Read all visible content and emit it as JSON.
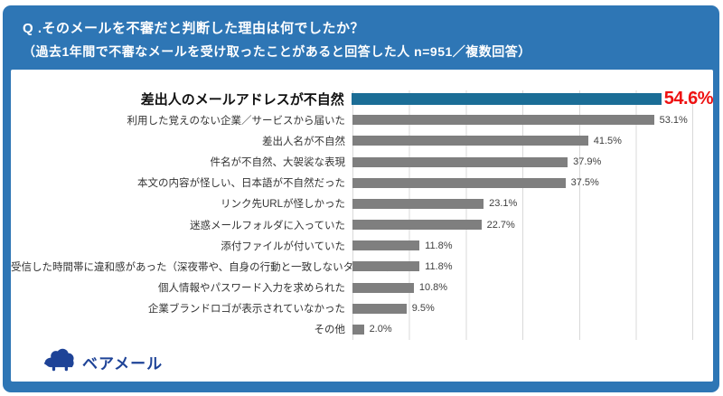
{
  "header": {
    "line1": "Q .そのメールを不審だと判断した理由は何でしたか？",
    "line2": "（過去1年間で不審なメールを受け取ったことがあると回答した人 n=951／複数回答）"
  },
  "logo": {
    "text": "ベアメール"
  },
  "colors": {
    "frame_blue": "#2e76b5",
    "highlight_bar": "#1b6d96",
    "bar_gray": "#7f7f7f",
    "highlight_value_red": "#ee1111",
    "gridline": "#d9d9d9",
    "logo_navy": "#1e4397"
  },
  "chart_data": {
    "type": "bar",
    "orientation": "horizontal",
    "title": "Q .そのメールを不審だと判断した理由は何でしたか？",
    "subtitle": "（過去1年間で不審なメールを受け取ったことがあると回答した人 n=951／複数回答）",
    "categories": [
      "差出人のメールアドレスが不自然",
      "利用した覚えのない企業／サービスから届いた",
      "差出人名が不自然",
      "件名が不自然、大袈裟な表現",
      "本文の内容が怪しい、日本語が不自然だった",
      "リンク先URLが怪しかった",
      "迷惑メールフォルダに入っていた",
      "添付ファイルが付いていた",
      "受信した時間帯に違和感があった（深夜帯や、自身の行動と一致しないタイミングなど）",
      "個人情報やパスワード入力を求められた",
      "企業ブランドロゴが表示されていなかった",
      "その他"
    ],
    "values": [
      54.6,
      53.1,
      41.5,
      37.9,
      37.5,
      23.1,
      22.7,
      11.8,
      11.8,
      10.8,
      9.5,
      2.0
    ],
    "value_labels": [
      "54.6%",
      "53.1%",
      "41.5%",
      "37.9%",
      "37.5%",
      "23.1%",
      "22.7%",
      "11.8%",
      "11.8%",
      "10.8%",
      "9.5%",
      "2.0%"
    ],
    "xlabel": "",
    "ylabel": "",
    "xlim": [
      0,
      60
    ],
    "gridline_interval": 10,
    "grid": "vertical",
    "legend": "none",
    "highlight_index": 0
  }
}
